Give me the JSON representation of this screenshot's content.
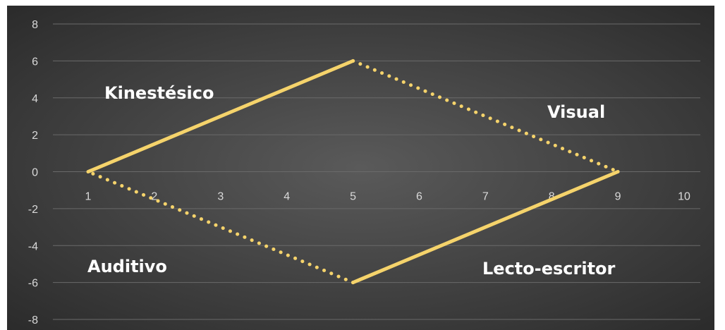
{
  "chart_data": {
    "type": "line",
    "title": "",
    "xlabel": "",
    "ylabel": "",
    "xlim": [
      1,
      10
    ],
    "ylim": [
      -8,
      8
    ],
    "x_ticks": [
      "1",
      "2",
      "3",
      "4",
      "5",
      "6",
      "7",
      "8",
      "9",
      "10"
    ],
    "y_ticks": [
      "8",
      "6",
      "4",
      "2",
      "0",
      "-2",
      "-4",
      "-6",
      "-8"
    ],
    "grid": true,
    "line_color": "#f5d36b",
    "background_color": "#404040",
    "series": [
      {
        "style": "solid",
        "points": [
          [
            1,
            0
          ],
          [
            5,
            6
          ]
        ]
      },
      {
        "style": "dotted",
        "points": [
          [
            5,
            6
          ],
          [
            9,
            0
          ]
        ]
      },
      {
        "style": "solid",
        "points": [
          [
            9,
            0
          ],
          [
            5,
            -6
          ]
        ]
      },
      {
        "style": "dotted",
        "points": [
          [
            5,
            -6
          ],
          [
            1,
            0
          ]
        ]
      }
    ],
    "annotations": [
      {
        "text": "Kinestésico"
      },
      {
        "text": "Visual"
      },
      {
        "text": "Auditivo"
      },
      {
        "text": "Lecto-escritor"
      }
    ]
  }
}
